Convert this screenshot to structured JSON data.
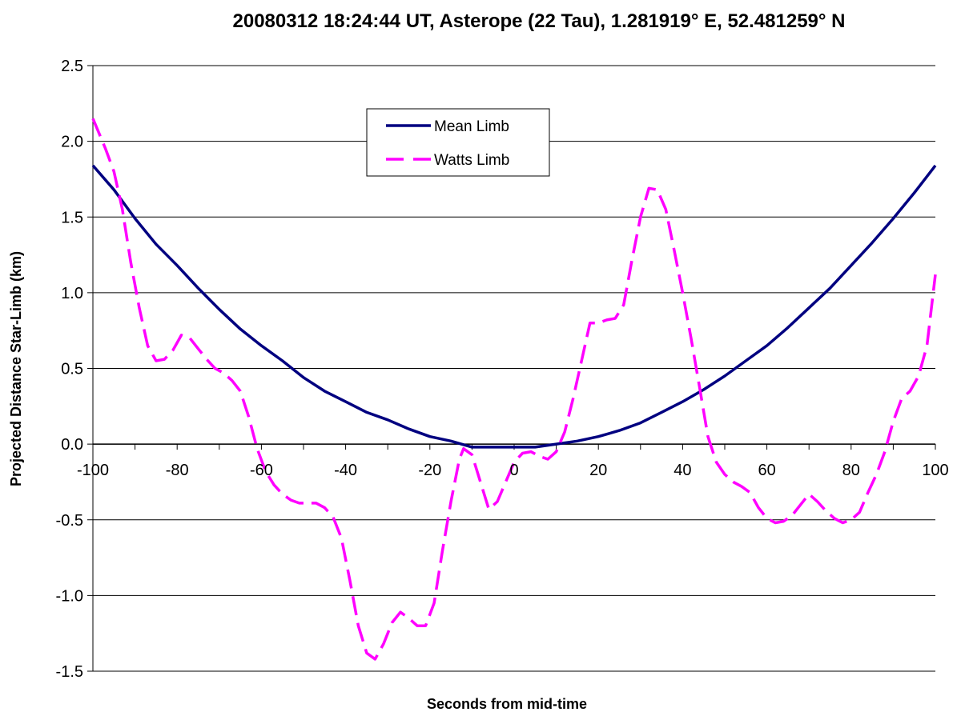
{
  "chart_data": {
    "type": "line",
    "title": "20080312 18:24:44 UT, Asterope (22 Tau), 1.281919° E, 52.481259° N",
    "xlabel": "Seconds from mid-time",
    "ylabel": "Projected Distance Star-Limb (km)",
    "xlim": [
      -100,
      100
    ],
    "ylim": [
      -1.5,
      2.5
    ],
    "x_ticks": [
      -100,
      -80,
      -60,
      -40,
      -20,
      0,
      20,
      40,
      60,
      80,
      100
    ],
    "y_ticks": [
      -1.5,
      -1.0,
      -0.5,
      0.0,
      0.5,
      1.0,
      1.5,
      2.0,
      2.5
    ],
    "x_tick_labels": [
      "-100",
      "-80",
      "-60",
      "-40",
      "-20",
      "0",
      "20",
      "40",
      "60",
      "80",
      "100"
    ],
    "y_tick_labels": [
      "-1.5",
      "-1.0",
      "-0.5",
      "0.0",
      "0.5",
      "1.0",
      "1.5",
      "2.0",
      "2.5"
    ],
    "grid": "horizontal",
    "legend_position": "top-center",
    "series": [
      {
        "name": "Mean Limb",
        "color": "#000080",
        "style": "solid",
        "points": [
          [
            -100,
            1.84
          ],
          [
            -95,
            1.68
          ],
          [
            -90,
            1.49
          ],
          [
            -85,
            1.32
          ],
          [
            -80,
            1.18
          ],
          [
            -75,
            1.03
          ],
          [
            -70,
            0.89
          ],
          [
            -65,
            0.76
          ],
          [
            -60,
            0.65
          ],
          [
            -55,
            0.55
          ],
          [
            -50,
            0.44
          ],
          [
            -45,
            0.35
          ],
          [
            -40,
            0.28
          ],
          [
            -35,
            0.21
          ],
          [
            -30,
            0.16
          ],
          [
            -25,
            0.1
          ],
          [
            -20,
            0.05
          ],
          [
            -15,
            0.02
          ],
          [
            -10,
            -0.02
          ],
          [
            -5,
            -0.02
          ],
          [
            0,
            -0.02
          ],
          [
            5,
            -0.02
          ],
          [
            10,
            0.0
          ],
          [
            15,
            0.02
          ],
          [
            20,
            0.05
          ],
          [
            25,
            0.09
          ],
          [
            30,
            0.14
          ],
          [
            35,
            0.21
          ],
          [
            40,
            0.28
          ],
          [
            45,
            0.36
          ],
          [
            50,
            0.45
          ],
          [
            55,
            0.55
          ],
          [
            60,
            0.65
          ],
          [
            65,
            0.77
          ],
          [
            70,
            0.9
          ],
          [
            75,
            1.03
          ],
          [
            80,
            1.18
          ],
          [
            85,
            1.33
          ],
          [
            90,
            1.49
          ],
          [
            95,
            1.66
          ],
          [
            100,
            1.84
          ]
        ]
      },
      {
        "name": "Watts Limb",
        "color": "#ff00ff",
        "style": "dashed",
        "points": [
          [
            -100,
            2.15
          ],
          [
            -97,
            1.95
          ],
          [
            -95,
            1.8
          ],
          [
            -93,
            1.55
          ],
          [
            -91,
            1.2
          ],
          [
            -89,
            0.9
          ],
          [
            -87,
            0.65
          ],
          [
            -85,
            0.55
          ],
          [
            -83,
            0.56
          ],
          [
            -81,
            0.62
          ],
          [
            -79,
            0.72
          ],
          [
            -77,
            0.7
          ],
          [
            -75,
            0.63
          ],
          [
            -73,
            0.56
          ],
          [
            -71,
            0.5
          ],
          [
            -69,
            0.47
          ],
          [
            -67,
            0.42
          ],
          [
            -65,
            0.35
          ],
          [
            -63,
            0.18
          ],
          [
            -61,
            -0.03
          ],
          [
            -59,
            -0.18
          ],
          [
            -57,
            -0.27
          ],
          [
            -55,
            -0.33
          ],
          [
            -53,
            -0.37
          ],
          [
            -51,
            -0.39
          ],
          [
            -49,
            -0.39
          ],
          [
            -47,
            -0.39
          ],
          [
            -45,
            -0.42
          ],
          [
            -43,
            -0.48
          ],
          [
            -41,
            -0.62
          ],
          [
            -39,
            -0.9
          ],
          [
            -37,
            -1.2
          ],
          [
            -35,
            -1.38
          ],
          [
            -33,
            -1.42
          ],
          [
            -31,
            -1.32
          ],
          [
            -29,
            -1.18
          ],
          [
            -27,
            -1.11
          ],
          [
            -25,
            -1.15
          ],
          [
            -23,
            -1.2
          ],
          [
            -21,
            -1.2
          ],
          [
            -19,
            -1.05
          ],
          [
            -17,
            -0.7
          ],
          [
            -15,
            -0.38
          ],
          [
            -13,
            -0.1
          ],
          [
            -12,
            -0.03
          ],
          [
            -10,
            -0.07
          ],
          [
            -8,
            -0.25
          ],
          [
            -6,
            -0.43
          ],
          [
            -4,
            -0.38
          ],
          [
            -2,
            -0.25
          ],
          [
            0,
            -0.12
          ],
          [
            2,
            -0.06
          ],
          [
            4,
            -0.05
          ],
          [
            6,
            -0.08
          ],
          [
            8,
            -0.1
          ],
          [
            10,
            -0.05
          ],
          [
            12,
            0.08
          ],
          [
            14,
            0.3
          ],
          [
            16,
            0.55
          ],
          [
            18,
            0.8
          ],
          [
            20,
            0.8
          ],
          [
            22,
            0.82
          ],
          [
            24,
            0.83
          ],
          [
            26,
            0.92
          ],
          [
            28,
            1.22
          ],
          [
            30,
            1.5
          ],
          [
            32,
            1.69
          ],
          [
            34,
            1.68
          ],
          [
            36,
            1.55
          ],
          [
            38,
            1.28
          ],
          [
            40,
            1.0
          ],
          [
            42,
            0.7
          ],
          [
            44,
            0.38
          ],
          [
            46,
            0.05
          ],
          [
            48,
            -0.12
          ],
          [
            50,
            -0.2
          ],
          [
            52,
            -0.25
          ],
          [
            54,
            -0.28
          ],
          [
            56,
            -0.32
          ],
          [
            58,
            -0.42
          ],
          [
            60,
            -0.49
          ],
          [
            62,
            -0.52
          ],
          [
            64,
            -0.51
          ],
          [
            66,
            -0.47
          ],
          [
            68,
            -0.4
          ],
          [
            70,
            -0.33
          ],
          [
            72,
            -0.38
          ],
          [
            74,
            -0.44
          ],
          [
            76,
            -0.49
          ],
          [
            78,
            -0.52
          ],
          [
            80,
            -0.5
          ],
          [
            82,
            -0.45
          ],
          [
            84,
            -0.32
          ],
          [
            86,
            -0.2
          ],
          [
            88,
            -0.05
          ],
          [
            90,
            0.15
          ],
          [
            92,
            0.3
          ],
          [
            94,
            0.35
          ],
          [
            96,
            0.45
          ],
          [
            98,
            0.65
          ],
          [
            100,
            1.12
          ]
        ]
      }
    ]
  }
}
